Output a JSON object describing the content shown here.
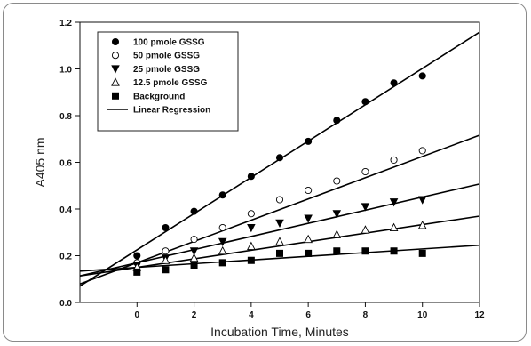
{
  "chart_data": {
    "type": "scatter",
    "title": "",
    "xlabel": "Incubation Time, Minutes",
    "ylabel": "A405 nm",
    "xlim": [
      -2,
      12
    ],
    "ylim": [
      0,
      1.2
    ],
    "x_ticks": [
      0,
      2,
      4,
      6,
      8,
      10,
      12
    ],
    "y_ticks": [
      0.0,
      0.2,
      0.4,
      0.6,
      0.8,
      1.0,
      1.2
    ],
    "y_tick_labels": [
      "0.0",
      "0.2",
      "0.4",
      "0.6",
      "0.8",
      "1.0",
      "1.2"
    ],
    "legend_position": "top-left",
    "grid": false,
    "series": [
      {
        "name": "100 pmole GSSG",
        "marker": "filled-circle",
        "x": [
          0,
          1,
          2,
          3,
          4,
          5,
          6,
          7,
          8,
          9,
          10
        ],
        "y": [
          0.2,
          0.32,
          0.39,
          0.46,
          0.54,
          0.62,
          0.69,
          0.78,
          0.86,
          0.94,
          0.97
        ],
        "fit": {
          "slope": 0.0777,
          "intercept": 0.225
        }
      },
      {
        "name": "50 pmole GSSG",
        "marker": "open-circle",
        "x": [
          0,
          1,
          2,
          3,
          4,
          5,
          6,
          7,
          8,
          9,
          10
        ],
        "y": [
          0.17,
          0.22,
          0.27,
          0.32,
          0.38,
          0.44,
          0.48,
          0.52,
          0.56,
          0.61,
          0.65
        ],
        "fit": {
          "slope": 0.0455,
          "intercept": 0.17
        }
      },
      {
        "name": "25 pmole GSSG",
        "marker": "filled-triangle-down",
        "x": [
          0,
          1,
          2,
          3,
          4,
          5,
          6,
          7,
          8,
          9,
          10
        ],
        "y": [
          0.16,
          0.19,
          0.22,
          0.26,
          0.32,
          0.34,
          0.36,
          0.38,
          0.41,
          0.43,
          0.44
        ],
        "fit": {
          "slope": 0.0281,
          "intercept": 0.17
        }
      },
      {
        "name": "12.5 pmole GSSG",
        "marker": "open-triangle-up",
        "x": [
          0,
          1,
          2,
          3,
          4,
          5,
          6,
          7,
          8,
          9,
          10
        ],
        "y": [
          0.15,
          0.18,
          0.19,
          0.22,
          0.24,
          0.26,
          0.27,
          0.29,
          0.31,
          0.32,
          0.33
        ],
        "fit": {
          "slope": 0.0183,
          "intercept": 0.15
        }
      },
      {
        "name": "Background",
        "marker": "filled-square",
        "x": [
          0,
          1,
          2,
          3,
          4,
          5,
          6,
          7,
          8,
          9,
          10
        ],
        "y": [
          0.13,
          0.14,
          0.16,
          0.17,
          0.18,
          0.21,
          0.21,
          0.22,
          0.22,
          0.22,
          0.21
        ],
        "fit": {
          "slope": 0.0079,
          "intercept": 0.15
        }
      }
    ],
    "regression_label": "Linear Regression"
  }
}
